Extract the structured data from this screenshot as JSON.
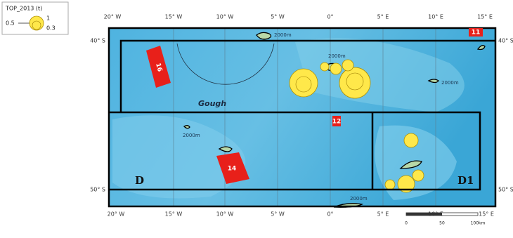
{
  "legend": {
    "title": "TOP_2013 (t)",
    "labels": [
      "0.5",
      "1",
      "0.3"
    ]
  },
  "axes": {
    "top": [
      "20° W",
      "15° W",
      "10° W",
      "5° W",
      "0°",
      "5° E",
      "10° E",
      "15° E"
    ],
    "bottom": [
      "20° W",
      "15° W",
      "10° W",
      "5° W",
      "0°",
      "5° E",
      "10° E",
      "15° E"
    ],
    "left": [
      "40° S",
      "50° S"
    ],
    "right": [
      "40° S",
      "50° S"
    ]
  },
  "labels": {
    "contours": [
      "2000m",
      "2000m",
      "2000m",
      "2000m",
      "2000m"
    ],
    "place": "Gough",
    "regions": [
      "D",
      "D1"
    ],
    "blocks": [
      "16",
      "14",
      "12",
      "11"
    ]
  },
  "scale": [
    "0",
    "50",
    "100km"
  ]
}
